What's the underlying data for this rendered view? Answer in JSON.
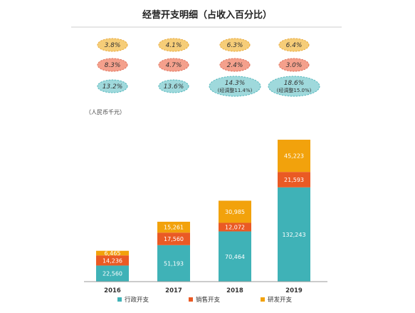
{
  "chart_data": {
    "type": "bar",
    "stacked": true,
    "title": "经营开支明细（占收入百分比）",
    "unit_label": "（人民币千元）",
    "categories": [
      "2016",
      "2017",
      "2018",
      "2019"
    ],
    "series": [
      {
        "name": "行政开支",
        "color": "#3fb2b7",
        "values": [
          22560,
          51193,
          70464,
          132243
        ]
      },
      {
        "name": "销售开支",
        "color": "#ea5a24",
        "values": [
          14236,
          17560,
          12072,
          21593
        ]
      },
      {
        "name": "研发开支",
        "color": "#f2a20c",
        "values": [
          6465,
          15261,
          30985,
          45223
        ]
      }
    ],
    "value_labels": [
      [
        "22,560",
        "51,193",
        "70,464",
        "132,243"
      ],
      [
        "14,236",
        "17,560",
        "12,072",
        "21,593"
      ],
      [
        "6,465",
        "15,261",
        "30,985",
        "45,223"
      ]
    ],
    "percent_rows": [
      {
        "color": "#f6cd78",
        "border": "#e8a93a",
        "labels": [
          "3.8%",
          "4.1%",
          "6.3%",
          "6.4%"
        ]
      },
      {
        "color": "#f4a08c",
        "border": "#e0705a",
        "labels": [
          "8.3%",
          "4.7%",
          "2.4%",
          "3.0%"
        ]
      },
      {
        "color": "#9fd9dc",
        "border": "#56b8bd",
        "labels": [
          "13.2%",
          "13.6%",
          "14.3%",
          "18.6%"
        ],
        "sub_labels": [
          "",
          "",
          "(经调整11.4%)",
          "(经调整15.0%)"
        ]
      }
    ],
    "legend_position": "bottom",
    "ylim": [
      0,
      200000
    ],
    "grid": false
  }
}
